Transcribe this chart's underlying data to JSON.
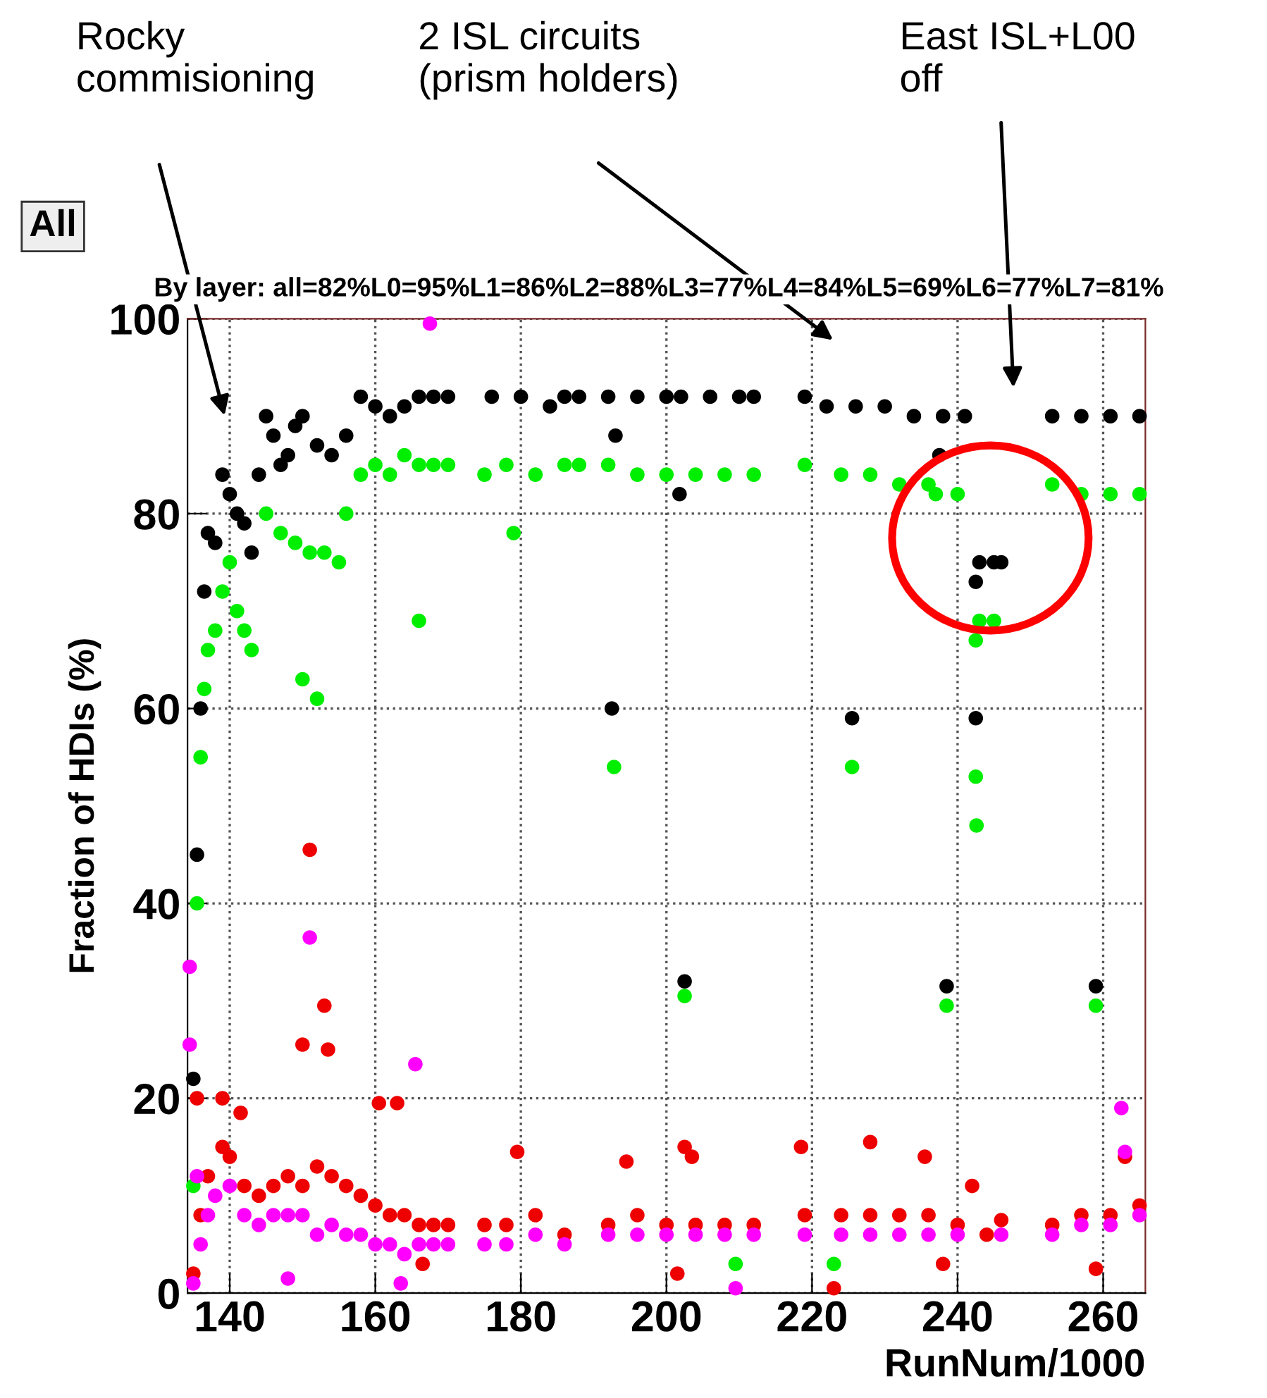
{
  "chart_data": {
    "type": "scatter",
    "xlabel": "RunNum/1000",
    "ylabel": "Fraction of HDIs (%)",
    "xlim": [
      134.2,
      265.8
    ],
    "ylim": [
      0,
      100
    ],
    "xticks": [
      140,
      160,
      180,
      200,
      220,
      240,
      260
    ],
    "yticks": [
      0,
      20,
      40,
      60,
      80,
      100
    ],
    "grid": true,
    "marker": "circle",
    "legend": false,
    "annotations": [
      "All",
      "By layer: all=82%L0=95%L1=86%L2=88%L3=77%L4=84%L5=69%L6=77%L7=81%",
      "Rocky\ncommisioning",
      "2 ISL circuits\n(prism holders)",
      "East ISL+L00\noff"
    ],
    "series": [
      {
        "color": "#000000",
        "x": [
          135,
          135.5,
          136,
          136.5,
          137,
          138,
          139,
          140,
          141,
          142,
          143,
          144,
          145,
          146,
          147,
          148,
          149,
          150,
          152,
          154,
          156,
          158,
          160,
          162,
          164,
          166,
          168,
          170,
          176,
          180,
          184,
          186,
          188,
          192,
          193,
          196,
          200,
          202,
          206,
          210,
          212,
          219,
          222,
          226,
          230,
          234,
          238,
          241,
          243,
          245,
          246,
          242.5,
          242.5,
          253,
          257,
          261,
          265,
          192.5,
          202.5,
          238.5,
          259,
          225.5,
          237.5,
          201.8
        ],
        "values": [
          22,
          45,
          60,
          72,
          78,
          77,
          84,
          82,
          80,
          79,
          76,
          84,
          90,
          88,
          85,
          86,
          89,
          90,
          87,
          86,
          88,
          92,
          91,
          90,
          91,
          92,
          92,
          92,
          92,
          92,
          91,
          92,
          92,
          92,
          88,
          92,
          92,
          92,
          92,
          92,
          92,
          92,
          91,
          91,
          91,
          90,
          90,
          90,
          75,
          75,
          75,
          73,
          59,
          90,
          90,
          90,
          90,
          60,
          32,
          31.5,
          31.5,
          59,
          86,
          82
        ]
      },
      {
        "color": "#00ee00",
        "x": [
          135,
          135.5,
          136,
          136.5,
          137,
          138,
          139,
          140,
          141,
          142,
          143,
          145,
          147,
          149,
          151,
          153,
          155,
          156,
          158,
          160,
          162,
          164,
          166,
          168,
          170,
          175,
          178,
          182,
          186,
          188,
          192,
          196,
          200,
          204,
          208,
          212,
          219,
          224,
          228,
          232,
          236,
          240,
          243,
          245,
          242.5,
          242.5,
          242.6,
          253,
          257,
          261,
          265,
          150,
          152,
          166,
          192.8,
          202.5,
          238.5,
          259,
          209.5,
          223,
          225.5,
          179,
          237
        ],
        "values": [
          11,
          40,
          55,
          62,
          66,
          68,
          72,
          75,
          70,
          68,
          66,
          80,
          78,
          77,
          76,
          76,
          75,
          80,
          84,
          85,
          84,
          86,
          85,
          85,
          85,
          84,
          85,
          84,
          85,
          85,
          85,
          84,
          84,
          84,
          84,
          84,
          85,
          84,
          84,
          83,
          83,
          82,
          69,
          69,
          67,
          53,
          48,
          83,
          82,
          82,
          82,
          63,
          61,
          69,
          54,
          30.5,
          29.5,
          29.5,
          3,
          3,
          54,
          78,
          82
        ]
      },
      {
        "color": "#ee0000",
        "x": [
          135,
          135.5,
          136,
          137,
          139,
          140,
          142,
          144,
          146,
          148,
          150,
          152,
          154,
          156,
          158,
          160,
          162,
          164,
          166,
          168,
          170,
          175,
          178,
          182,
          186,
          192,
          196,
          200,
          204,
          208,
          212,
          219,
          224,
          228,
          232,
          236,
          240,
          244,
          246,
          253,
          257,
          261,
          265,
          151,
          150,
          153,
          153.5,
          139,
          141.5,
          160.5,
          163,
          179.5,
          194.5,
          202.5,
          203.5,
          218.5,
          228,
          235.5,
          242,
          223,
          201.5,
          238,
          259,
          263,
          166.5
        ],
        "values": [
          2,
          20,
          8,
          12,
          15,
          14,
          11,
          10,
          11,
          12,
          11,
          13,
          12,
          11,
          10,
          9,
          8,
          8,
          7,
          7,
          7,
          7,
          7,
          8,
          6,
          7,
          8,
          7,
          7,
          7,
          7,
          8,
          8,
          8,
          8,
          8,
          7,
          6,
          7.5,
          7,
          8,
          8,
          9,
          45.5,
          25.5,
          29.5,
          25,
          20,
          18.5,
          19.5,
          19.5,
          14.5,
          13.5,
          15,
          14,
          15,
          15.5,
          14,
          11,
          0.5,
          2,
          3,
          2.5,
          14,
          3
        ]
      },
      {
        "color": "#ff00ff",
        "x": [
          134.5,
          134.5,
          135,
          135.5,
          136,
          137,
          138,
          140,
          142,
          144,
          146,
          148,
          150,
          152,
          154,
          156,
          158,
          160,
          162,
          164,
          166,
          168,
          170,
          175,
          178,
          182,
          186,
          192,
          196,
          200,
          204,
          208,
          212,
          219,
          224,
          228,
          232,
          236,
          240,
          246,
          253,
          257,
          261,
          265,
          151,
          165.5,
          167.5,
          262.5,
          263,
          148,
          209.5,
          163.5
        ],
        "values": [
          33.5,
          25.5,
          1,
          12,
          5,
          8,
          10,
          11,
          8,
          7,
          8,
          8,
          8,
          6,
          7,
          6,
          6,
          5,
          5,
          4,
          5,
          5,
          5,
          5,
          5,
          6,
          5,
          6,
          6,
          6,
          6,
          6,
          6,
          6,
          6,
          6,
          6,
          6,
          6,
          6,
          6,
          7,
          7,
          8,
          36.5,
          23.5,
          99.5,
          19,
          14.5,
          1.5,
          0.5,
          1
        ]
      }
    ]
  }
}
